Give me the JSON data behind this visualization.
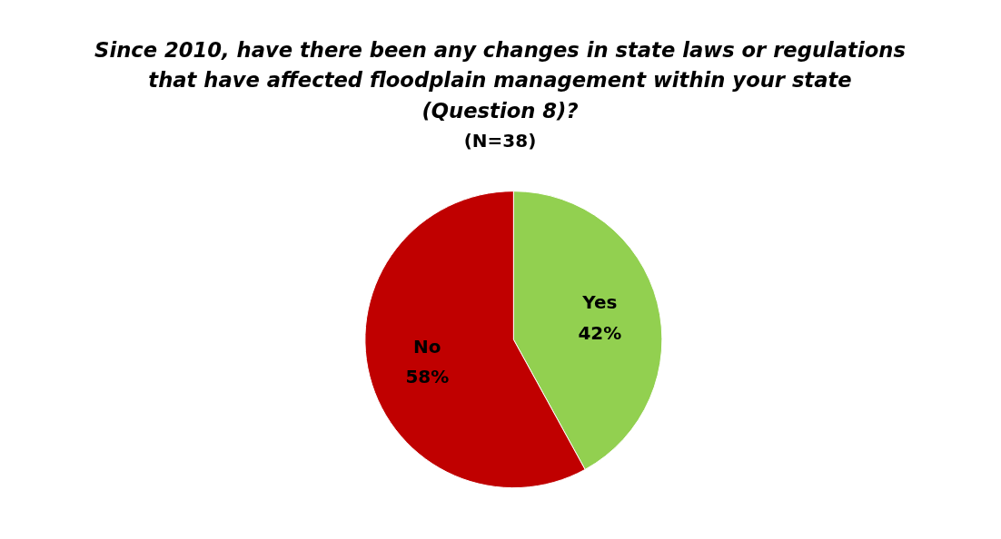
{
  "chart_data": {
    "type": "pie",
    "title": "Since 2010, have there been any changes in state laws or regulations\nthat have affected floodplain management within your state\n(Question 8)?",
    "subtitle": "(N=38)",
    "categories": [
      "Yes",
      "No"
    ],
    "values": [
      42,
      58
    ],
    "colors": [
      "#92d050",
      "#c00000"
    ],
    "value_labels": [
      "42%",
      "58%"
    ]
  }
}
